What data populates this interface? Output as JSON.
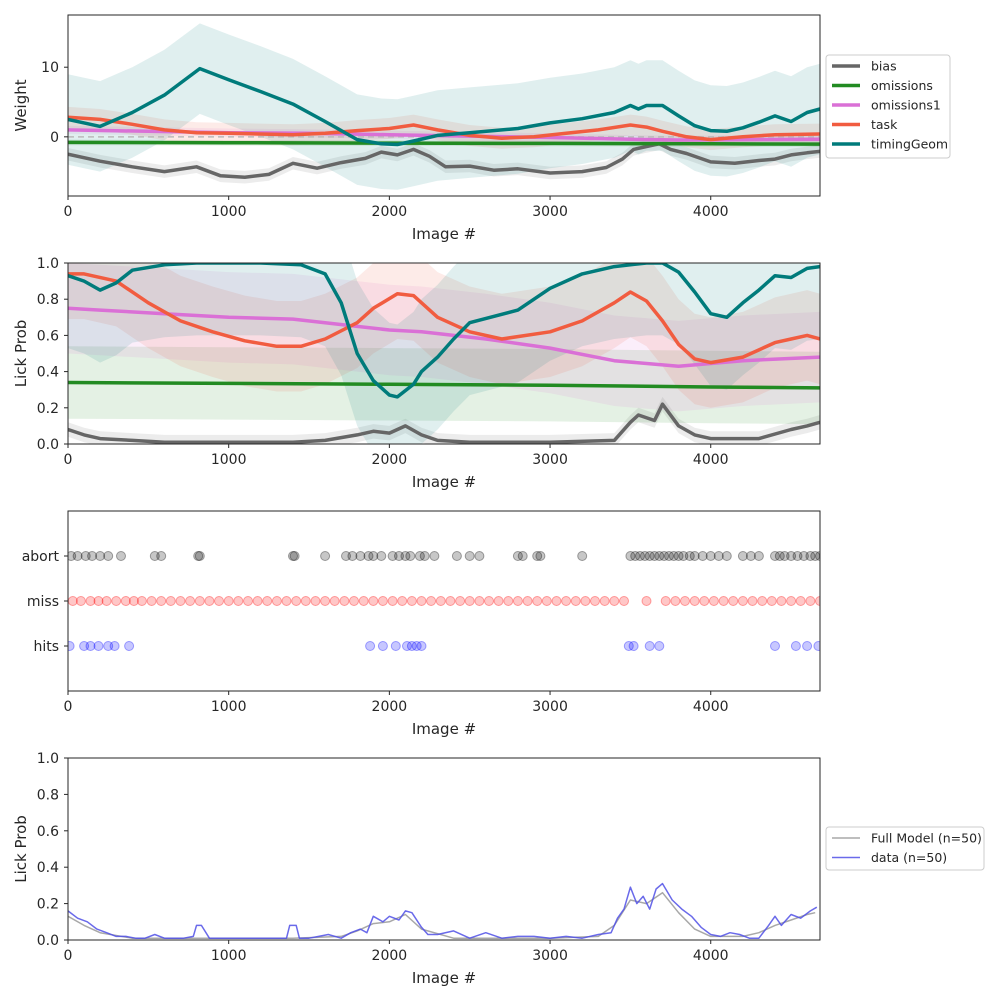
{
  "chart_data": [
    {
      "type": "line",
      "ylabel": "Weight",
      "xlabel": "Image #",
      "xlim": [
        0,
        4680
      ],
      "ylim": [
        -8.5,
        17.5
      ],
      "xticks": [
        0,
        1000,
        2000,
        3000,
        4000
      ],
      "xtick_labels": [
        "0",
        "1000",
        "2000",
        "3000",
        "4000"
      ],
      "yticks": [
        0,
        10
      ],
      "ytick_labels": [
        "0",
        "10"
      ],
      "legend": {
        "position": "outside-right",
        "entries": [
          "bias",
          "omissions",
          "omissions1",
          "task",
          "timingGeom"
        ]
      },
      "reference_line": {
        "y": 0,
        "style": "dashed"
      },
      "series": [
        {
          "name": "bias",
          "color": "#666666",
          "band": 0.9,
          "x": [
            0,
            200,
            400,
            600,
            800,
            950,
            1100,
            1250,
            1400,
            1550,
            1700,
            1850,
            1950,
            2050,
            2150,
            2250,
            2350,
            2500,
            2650,
            2800,
            3000,
            3200,
            3350,
            3450,
            3520,
            3600,
            3680,
            3750,
            3850,
            4000,
            4150,
            4300,
            4400,
            4500,
            4600,
            4680
          ],
          "values": [
            -2.5,
            -3.5,
            -4.3,
            -5.0,
            -4.3,
            -5.6,
            -5.8,
            -5.4,
            -3.8,
            -4.5,
            -3.7,
            -3.1,
            -2.2,
            -2.6,
            -1.8,
            -2.8,
            -4.3,
            -4.2,
            -4.8,
            -4.6,
            -5.2,
            -5.0,
            -4.4,
            -3.2,
            -1.8,
            -1.4,
            -1.0,
            -1.8,
            -2.4,
            -3.6,
            -3.8,
            -3.4,
            -3.2,
            -2.6,
            -2.3,
            -2.1
          ]
        },
        {
          "name": "omissions",
          "color": "#228b22",
          "band": 0.4,
          "x": [
            0,
            1000,
            2000,
            3000,
            4000,
            4680
          ],
          "values": [
            -0.8,
            -0.85,
            -0.9,
            -0.95,
            -1.0,
            -1.05
          ]
        },
        {
          "name": "omissions1",
          "color": "#da70d6",
          "band": 0.6,
          "x": [
            0,
            500,
            1000,
            1500,
            2000,
            2500,
            3000,
            3500,
            3800,
            4200,
            4680
          ],
          "values": [
            1.0,
            0.8,
            0.6,
            0.5,
            0.3,
            0.1,
            -0.1,
            -0.35,
            -0.45,
            -0.4,
            -0.35
          ]
        },
        {
          "name": "task",
          "color": "#f15c40",
          "band": 1.5,
          "x": [
            0,
            200,
            400,
            600,
            800,
            1000,
            1400,
            1600,
            1800,
            2000,
            2150,
            2300,
            2500,
            2700,
            2900,
            3100,
            3300,
            3500,
            3600,
            3700,
            3850,
            4000,
            4200,
            4400,
            4680
          ],
          "values": [
            2.8,
            2.5,
            1.8,
            1.0,
            0.6,
            0.5,
            0.3,
            0.5,
            0.9,
            1.2,
            1.7,
            1.0,
            0.2,
            -0.2,
            0.0,
            0.5,
            1.0,
            1.7,
            1.4,
            0.8,
            0.0,
            -0.4,
            0.0,
            0.3,
            0.4
          ]
        },
        {
          "name": "timingGeom",
          "color": "#007b7b",
          "band": 6.5,
          "x": [
            0,
            100,
            200,
            400,
            600,
            820,
            1000,
            1200,
            1400,
            1600,
            1800,
            1950,
            2050,
            2150,
            2300,
            2500,
            2800,
            3000,
            3200,
            3400,
            3500,
            3550,
            3600,
            3700,
            3800,
            3900,
            4000,
            4100,
            4200,
            4300,
            4400,
            4500,
            4600,
            4680
          ],
          "values": [
            2.5,
            2.0,
            1.5,
            3.5,
            6.0,
            9.8,
            8.2,
            6.5,
            4.7,
            2.2,
            -0.4,
            -1.0,
            -1.1,
            -0.6,
            0.2,
            0.6,
            1.2,
            2.0,
            2.6,
            3.5,
            4.5,
            4.0,
            4.5,
            4.5,
            3.0,
            1.6,
            0.9,
            0.8,
            1.3,
            2.1,
            3.0,
            2.2,
            3.5,
            4.0
          ]
        }
      ]
    },
    {
      "type": "line",
      "ylabel": "Lick Prob",
      "xlabel": "Image #",
      "xlim": [
        0,
        4680
      ],
      "ylim": [
        0,
        1.0
      ],
      "xticks": [
        0,
        1000,
        2000,
        3000,
        4000
      ],
      "xtick_labels": [
        "0",
        "1000",
        "2000",
        "3000",
        "4000"
      ],
      "yticks": [
        0.0,
        0.2,
        0.4,
        0.6,
        0.8,
        1.0
      ],
      "ytick_labels": [
        "0.0",
        "0.2",
        "0.4",
        "0.6",
        "0.8",
        "1.0"
      ],
      "series": [
        {
          "name": "bias",
          "color": "#666666",
          "band": 0.04,
          "x": [
            0,
            100,
            200,
            400,
            600,
            800,
            1000,
            1400,
            1600,
            1800,
            1900,
            2000,
            2100,
            2200,
            2300,
            2500,
            3000,
            3400,
            3500,
            3550,
            3650,
            3700,
            3800,
            3900,
            4000,
            4300,
            4500,
            4600,
            4680
          ],
          "values": [
            0.08,
            0.05,
            0.03,
            0.02,
            0.01,
            0.01,
            0.01,
            0.01,
            0.02,
            0.05,
            0.07,
            0.06,
            0.1,
            0.05,
            0.02,
            0.01,
            0.01,
            0.02,
            0.12,
            0.16,
            0.13,
            0.22,
            0.1,
            0.05,
            0.03,
            0.03,
            0.08,
            0.1,
            0.12
          ]
        },
        {
          "name": "omissions",
          "color": "#228b22",
          "band": 0.2,
          "x": [
            0,
            1000,
            2000,
            3000,
            4000,
            4680
          ],
          "values": [
            0.34,
            0.335,
            0.33,
            0.325,
            0.315,
            0.31
          ]
        },
        {
          "name": "omissions1",
          "color": "#da70d6",
          "band": 0.25,
          "x": [
            0,
            200,
            600,
            1000,
            1400,
            1800,
            2000,
            2200,
            2600,
            3000,
            3400,
            3800,
            4200,
            4680
          ],
          "values": [
            0.75,
            0.74,
            0.72,
            0.7,
            0.69,
            0.65,
            0.63,
            0.62,
            0.58,
            0.53,
            0.46,
            0.43,
            0.46,
            0.48
          ]
        },
        {
          "name": "task",
          "color": "#f15c40",
          "band": 0.25,
          "x": [
            0,
            100,
            300,
            500,
            700,
            900,
            1100,
            1300,
            1450,
            1600,
            1800,
            1900,
            2050,
            2150,
            2300,
            2500,
            2700,
            3000,
            3200,
            3400,
            3500,
            3600,
            3700,
            3800,
            3900,
            4000,
            4200,
            4400,
            4500,
            4600,
            4680
          ],
          "values": [
            0.94,
            0.94,
            0.9,
            0.78,
            0.68,
            0.62,
            0.57,
            0.54,
            0.54,
            0.58,
            0.67,
            0.75,
            0.83,
            0.82,
            0.7,
            0.62,
            0.58,
            0.62,
            0.68,
            0.78,
            0.84,
            0.79,
            0.68,
            0.55,
            0.47,
            0.45,
            0.48,
            0.56,
            0.58,
            0.6,
            0.58
          ]
        },
        {
          "name": "timingGeom",
          "color": "#007b7b",
          "band": 0.4,
          "x": [
            0,
            100,
            200,
            300,
            400,
            600,
            800,
            1000,
            1200,
            1450,
            1600,
            1700,
            1800,
            1900,
            2000,
            2050,
            2150,
            2200,
            2300,
            2400,
            2500,
            2800,
            3000,
            3200,
            3400,
            3600,
            3700,
            3800,
            3900,
            4000,
            4100,
            4200,
            4300,
            4400,
            4500,
            4600,
            4680
          ],
          "values": [
            0.93,
            0.9,
            0.85,
            0.89,
            0.96,
            0.99,
            1.0,
            1.0,
            1.0,
            0.99,
            0.94,
            0.78,
            0.5,
            0.35,
            0.27,
            0.26,
            0.33,
            0.4,
            0.48,
            0.58,
            0.67,
            0.74,
            0.86,
            0.94,
            0.98,
            1.0,
            1.0,
            0.95,
            0.84,
            0.72,
            0.7,
            0.78,
            0.85,
            0.93,
            0.92,
            0.97,
            0.98
          ]
        }
      ]
    },
    {
      "type": "scatter",
      "xlabel": "Image #",
      "xlim": [
        0,
        4680
      ],
      "ylim": [
        -1,
        3
      ],
      "xticks": [
        0,
        1000,
        2000,
        3000,
        4000
      ],
      "xtick_labels": [
        "0",
        "1000",
        "2000",
        "3000",
        "4000"
      ],
      "yticks": [
        0,
        1,
        2
      ],
      "ytick_labels": [
        "hits",
        "miss",
        "abort"
      ],
      "series": [
        {
          "name": "abort",
          "level": 2,
          "color": "#000000",
          "x": [
            20,
            60,
            110,
            150,
            200,
            250,
            330,
            540,
            580,
            810,
            820,
            1400,
            1410,
            1600,
            1730,
            1770,
            1820,
            1870,
            1900,
            1950,
            2020,
            2060,
            2100,
            2130,
            2190,
            2220,
            2280,
            2420,
            2500,
            2560,
            2800,
            2830,
            2920,
            2940,
            3200,
            3500,
            3530,
            3560,
            3590,
            3620,
            3650,
            3680,
            3710,
            3740,
            3770,
            3800,
            3830,
            3870,
            3900,
            3950,
            4000,
            4050,
            4100,
            4200,
            4250,
            4300,
            4400,
            4430,
            4460,
            4500,
            4540,
            4580,
            4620,
            4650,
            4680
          ]
        },
        {
          "name": "miss",
          "level": 1,
          "color": "#ff0000",
          "x": [
            30,
            80,
            140,
            190,
            240,
            300,
            360,
            410,
            460,
            520,
            580,
            640,
            700,
            760,
            820,
            880,
            940,
            1000,
            1060,
            1120,
            1180,
            1240,
            1300,
            1360,
            1420,
            1480,
            1540,
            1600,
            1660,
            1720,
            1780,
            1840,
            1900,
            1960,
            2020,
            2080,
            2140,
            2200,
            2260,
            2320,
            2380,
            2440,
            2500,
            2560,
            2620,
            2680,
            2740,
            2800,
            2860,
            2920,
            2980,
            3040,
            3100,
            3160,
            3220,
            3280,
            3340,
            3400,
            3460,
            3600,
            3720,
            3780,
            3840,
            3900,
            3960,
            4020,
            4080,
            4140,
            4200,
            4260,
            4320,
            4380,
            4440,
            4500,
            4560,
            4620,
            4680
          ]
        },
        {
          "name": "hits",
          "level": 0,
          "color": "#0000ff",
          "x": [
            10,
            100,
            140,
            190,
            250,
            290,
            380,
            1880,
            1960,
            2040,
            2110,
            2140,
            2170,
            2200,
            3490,
            3520,
            3620,
            3680,
            4400,
            4530,
            4600,
            4670
          ]
        }
      ]
    },
    {
      "type": "line",
      "ylabel": "Lick Prob",
      "xlabel": "Image #",
      "xlim": [
        0,
        4680
      ],
      "ylim": [
        0,
        1.0
      ],
      "xticks": [
        0,
        1000,
        2000,
        3000,
        4000
      ],
      "xtick_labels": [
        "0",
        "1000",
        "2000",
        "3000",
        "4000"
      ],
      "yticks": [
        0.0,
        0.2,
        0.4,
        0.6,
        0.8,
        1.0
      ],
      "ytick_labels": [
        "0.0",
        "0.2",
        "0.4",
        "0.6",
        "0.8",
        "1.0"
      ],
      "legend": {
        "position": "outside-right",
        "entries": [
          "Full Model (n=50)",
          "data (n=50)"
        ]
      },
      "series": [
        {
          "name": "Full Model (n=50)",
          "color": "#999999",
          "x": [
            0,
            100,
            200,
            400,
            600,
            800,
            1000,
            1400,
            1700,
            1800,
            1900,
            2000,
            2100,
            2200,
            2400,
            3000,
            3300,
            3400,
            3500,
            3600,
            3700,
            3800,
            3900,
            4000,
            4200,
            4300,
            4400,
            4500,
            4600,
            4650
          ],
          "values": [
            0.13,
            0.08,
            0.04,
            0.01,
            0.01,
            0.01,
            0.01,
            0.01,
            0.02,
            0.05,
            0.09,
            0.1,
            0.14,
            0.06,
            0.01,
            0.01,
            0.02,
            0.08,
            0.22,
            0.2,
            0.26,
            0.15,
            0.06,
            0.02,
            0.02,
            0.04,
            0.08,
            0.11,
            0.14,
            0.15
          ]
        },
        {
          "name": "data (n=50)",
          "color": "#5050e6",
          "x": [
            0,
            60,
            120,
            180,
            240,
            300,
            360,
            420,
            480,
            540,
            600,
            660,
            720,
            780,
            800,
            830,
            880,
            1000,
            1200,
            1360,
            1380,
            1420,
            1440,
            1500,
            1560,
            1620,
            1700,
            1760,
            1820,
            1860,
            1900,
            1960,
            2000,
            2060,
            2100,
            2140,
            2200,
            2240,
            2300,
            2400,
            2500,
            2600,
            2700,
            2800,
            2900,
            3000,
            3100,
            3200,
            3300,
            3380,
            3420,
            3460,
            3500,
            3540,
            3580,
            3620,
            3660,
            3700,
            3760,
            3820,
            3880,
            3940,
            4000,
            4060,
            4120,
            4180,
            4240,
            4300,
            4360,
            4400,
            4440,
            4500,
            4560,
            4620,
            4660
          ],
          "values": [
            0.16,
            0.12,
            0.1,
            0.06,
            0.04,
            0.02,
            0.02,
            0.01,
            0.01,
            0.03,
            0.01,
            0.01,
            0.01,
            0.02,
            0.08,
            0.08,
            0.01,
            0.01,
            0.01,
            0.01,
            0.08,
            0.08,
            0.01,
            0.01,
            0.02,
            0.03,
            0.01,
            0.04,
            0.06,
            0.04,
            0.13,
            0.1,
            0.13,
            0.11,
            0.16,
            0.15,
            0.07,
            0.03,
            0.03,
            0.05,
            0.01,
            0.04,
            0.01,
            0.02,
            0.02,
            0.01,
            0.02,
            0.01,
            0.03,
            0.04,
            0.12,
            0.17,
            0.29,
            0.2,
            0.24,
            0.17,
            0.28,
            0.31,
            0.22,
            0.17,
            0.13,
            0.07,
            0.03,
            0.02,
            0.04,
            0.03,
            0.01,
            0.01,
            0.08,
            0.13,
            0.08,
            0.14,
            0.12,
            0.16,
            0.18
          ]
        }
      ]
    }
  ]
}
